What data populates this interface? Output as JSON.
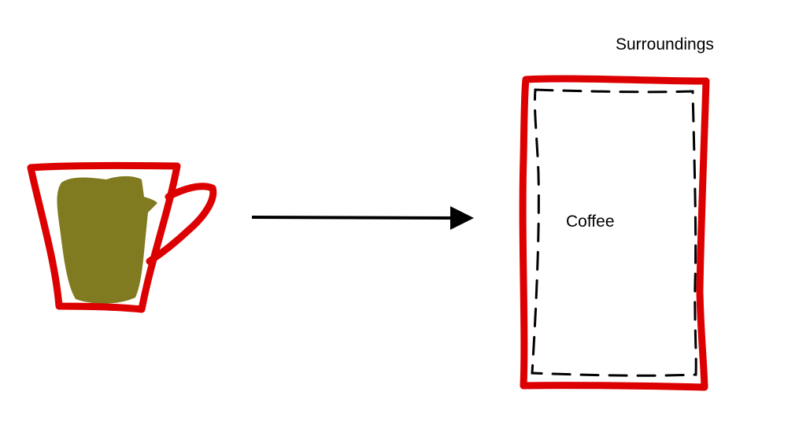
{
  "labels": {
    "surroundings": "Surroundings",
    "coffee": "Coffee"
  },
  "colors": {
    "outline": "#dd0000",
    "coffee_fill": "#807a20",
    "arrow": "#000000",
    "dashed_boundary": "#000000",
    "background": "#ffffff"
  },
  "icons": {
    "cup": "coffee-cup-icon",
    "arrow": "right-arrow-icon"
  }
}
